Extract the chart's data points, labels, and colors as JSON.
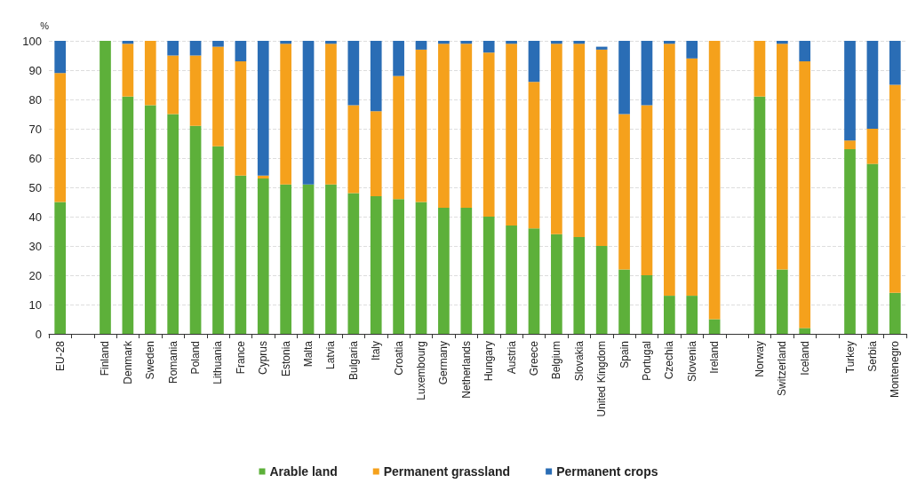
{
  "chart_data": {
    "type": "bar",
    "stacked": true,
    "ylabel": "%",
    "categories": [
      "EU-28",
      null,
      "Finland",
      "Denmark",
      "Sweden",
      "Romania",
      "Poland",
      "Lithuania",
      "France",
      "Cyprus",
      "Estonia",
      "Malta",
      "Latvia",
      "Bulgaria",
      "Italy",
      "Croatia",
      "Luxembourg",
      "Germany",
      "Netherlands",
      "Hungary",
      "Austria",
      "Greece",
      "Belgium",
      "Slovakia",
      "United Kingdom",
      "Spain",
      "Portugal",
      "Czechia",
      "Slovenia",
      "Ireland",
      null,
      "Norway",
      "Switzerland",
      "Iceland",
      null,
      "Turkey",
      "Serbia",
      "Montenegro"
    ],
    "series": [
      {
        "name": "Arable land",
        "color": "#5db03a",
        "values": [
          45,
          null,
          100,
          81,
          78,
          75,
          71,
          64,
          54,
          53,
          51,
          51,
          51,
          48,
          47,
          46,
          45,
          43,
          43,
          40,
          37,
          36,
          34,
          33,
          30,
          22,
          20,
          13,
          13,
          5,
          null,
          81,
          22,
          2,
          null,
          63,
          58,
          14
        ]
      },
      {
        "name": "Permanent grassland",
        "color": "#f5a11c",
        "values": [
          44,
          null,
          0,
          18,
          22,
          20,
          24,
          34,
          39,
          1,
          48,
          0,
          48,
          30,
          29,
          42,
          52,
          56,
          56,
          56,
          62,
          50,
          65,
          66,
          67,
          53,
          58,
          86,
          81,
          95,
          null,
          19,
          77,
          91,
          null,
          3,
          12,
          71
        ]
      },
      {
        "name": "Permanent crops",
        "color": "#2a6db5",
        "values": [
          11,
          null,
          0,
          1,
          0,
          5,
          5,
          2,
          7,
          46,
          1,
          49,
          1,
          22,
          24,
          12,
          3,
          1,
          1,
          4,
          1,
          14,
          1,
          1,
          1,
          25,
          22,
          1,
          6,
          0,
          null,
          0,
          1,
          7,
          null,
          34,
          30,
          15
        ]
      }
    ],
    "ylim": [
      0,
      100
    ],
    "yticks": [
      0,
      10,
      20,
      30,
      40,
      50,
      60,
      70,
      80,
      90,
      100
    ],
    "grid": "y",
    "legend": "bottom"
  }
}
